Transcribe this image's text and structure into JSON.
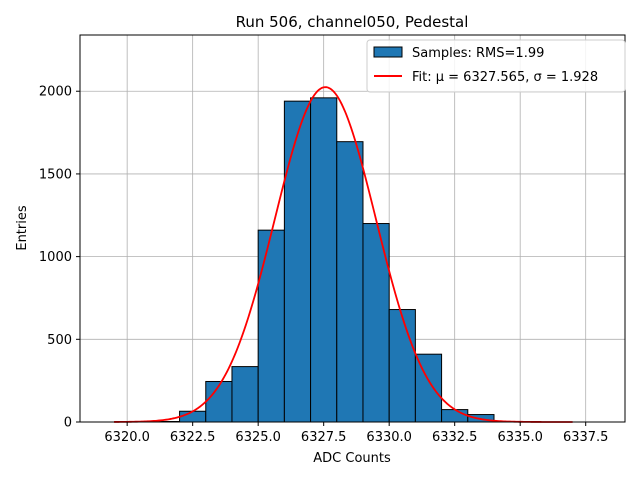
{
  "chart_data": {
    "type": "bar",
    "title": "Run 506, channel050, Pedestal",
    "xlabel": "ADC Counts",
    "ylabel": "Entries",
    "xlim": [
      6318.2,
      6339.0
    ],
    "ylim": [
      0,
      2340
    ],
    "grid": true,
    "legend_position": "top-right",
    "x_ticks": [
      6320.0,
      6322.5,
      6325.0,
      6327.5,
      6330.0,
      6332.5,
      6335.0,
      6337.5
    ],
    "x_tick_labels": [
      "6320.0",
      "6322.5",
      "6325.0",
      "6327.5",
      "6330.0",
      "6332.5",
      "6335.0",
      "6337.5"
    ],
    "y_ticks": [
      0,
      500,
      1000,
      1500,
      2000
    ],
    "y_tick_labels": [
      "0",
      "500",
      "1000",
      "1500",
      "2000"
    ],
    "histogram": {
      "name": "Samples: RMS=1.99",
      "color": "#1f77b4",
      "edge_color": "#000000",
      "bins": [
        {
          "x0": 6321.0,
          "x1": 6322.0,
          "count": 3
        },
        {
          "x0": 6322.0,
          "x1": 6323.0,
          "count": 65
        },
        {
          "x0": 6323.0,
          "x1": 6324.0,
          "count": 245
        },
        {
          "x0": 6324.0,
          "x1": 6325.0,
          "count": 335
        },
        {
          "x0": 6325.0,
          "x1": 6326.0,
          "count": 1160
        },
        {
          "x0": 6326.0,
          "x1": 6327.0,
          "count": 1940
        },
        {
          "x0": 6327.0,
          "x1": 6328.0,
          "count": 1960
        },
        {
          "x0": 6328.0,
          "x1": 6329.0,
          "count": 1695
        },
        {
          "x0": 6329.0,
          "x1": 6330.0,
          "count": 1200
        },
        {
          "x0": 6330.0,
          "x1": 6331.0,
          "count": 680
        },
        {
          "x0": 6331.0,
          "x1": 6332.0,
          "count": 410
        },
        {
          "x0": 6332.0,
          "x1": 6333.0,
          "count": 75
        },
        {
          "x0": 6333.0,
          "x1": 6334.0,
          "count": 45
        }
      ]
    },
    "fit": {
      "name": "Fit: μ = 6327.565, σ = 1.928",
      "color": "#ff0000",
      "mu": 6327.565,
      "sigma": 1.928,
      "amplitude": 2025,
      "x_range": [
        6319.5,
        6337.0
      ]
    }
  }
}
